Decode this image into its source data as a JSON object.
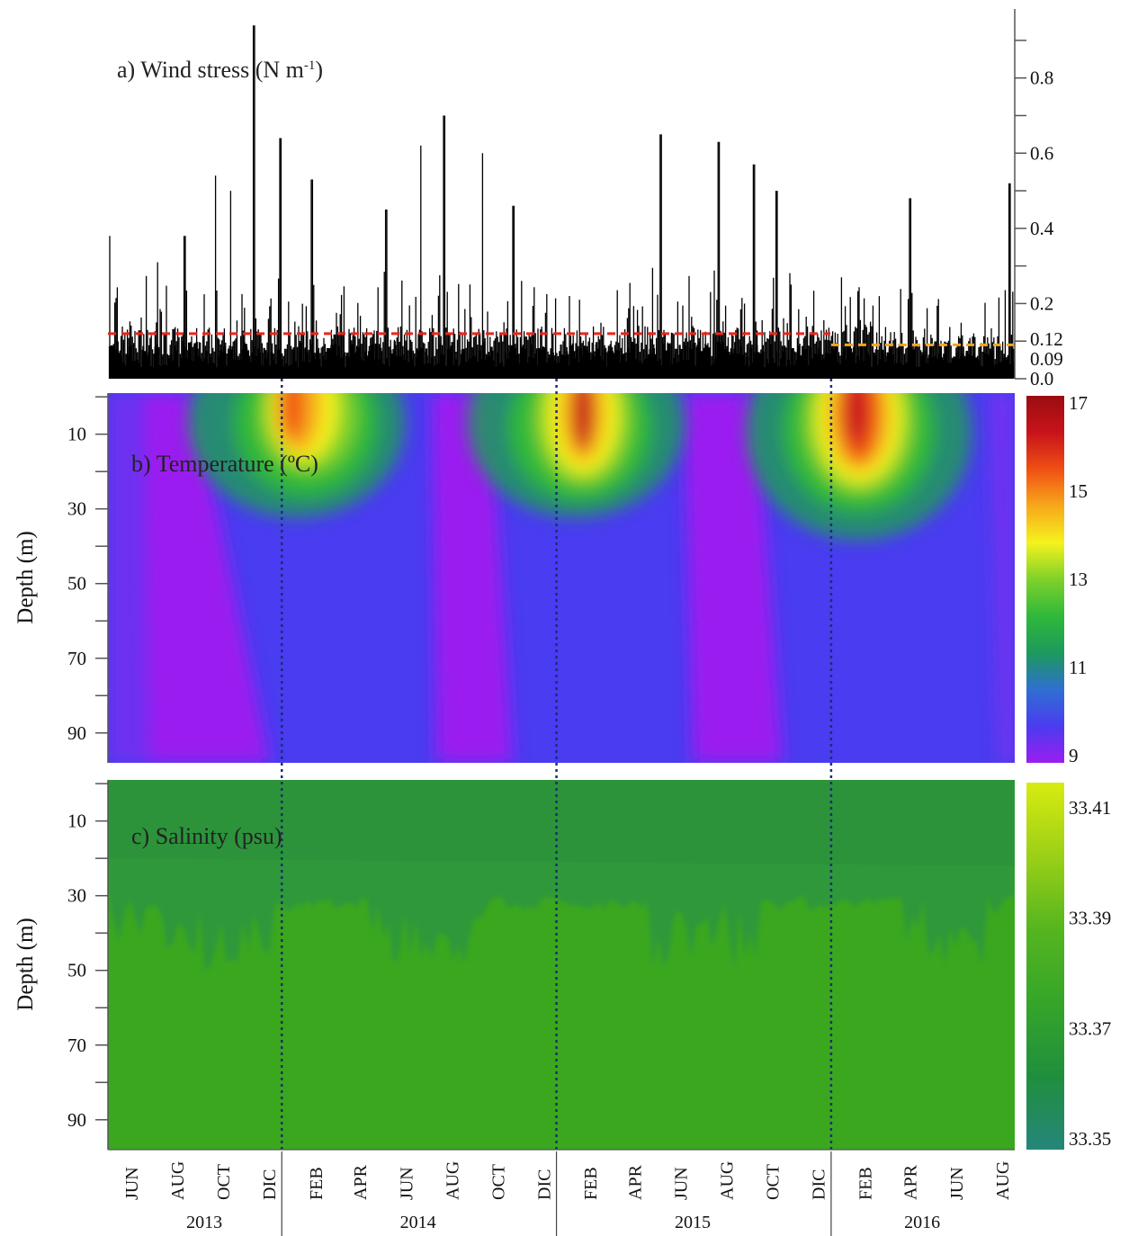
{
  "chart_data": [
    {
      "type": "line",
      "panel": "a",
      "label_prefix": "a) Wind stress (N m",
      "label_sup": "-1",
      "label_suffix": ")",
      "y_ticks": [
        "0.0",
        "0.2",
        "0.4",
        "0.6",
        "0.8"
      ],
      "ylim": [
        0,
        0.95
      ],
      "x_range": [
        "2013-05-15",
        "2016-09-01"
      ],
      "series": [
        {
          "values_description_peaks": [
            {
              "x": "2013-05-16",
              "y": 0.38
            },
            {
              "x": "2013-07-20",
              "y": 0.31
            },
            {
              "x": "2013-08-25",
              "y": 0.38
            },
            {
              "x": "2013-10-05",
              "y": 0.54
            },
            {
              "x": "2013-10-25",
              "y": 0.5
            },
            {
              "x": "2013-11-25",
              "y": 0.94
            },
            {
              "x": "2013-12-30",
              "y": 0.64
            },
            {
              "x": "2014-02-10",
              "y": 0.53
            },
            {
              "x": "2014-05-20",
              "y": 0.45
            },
            {
              "x": "2014-07-05",
              "y": 0.62
            },
            {
              "x": "2014-08-05",
              "y": 0.7
            },
            {
              "x": "2014-09-25",
              "y": 0.6
            },
            {
              "x": "2014-11-05",
              "y": 0.46
            },
            {
              "x": "2015-05-20",
              "y": 0.65
            },
            {
              "x": "2015-08-05",
              "y": 0.63
            },
            {
              "x": "2015-09-20",
              "y": 0.57
            },
            {
              "x": "2015-10-20",
              "y": 0.5
            },
            {
              "x": "2016-04-15",
              "y": 0.48
            },
            {
              "x": "2016-08-25",
              "y": 0.52
            }
          ]
        }
      ],
      "threshold_lines": [
        {
          "value": 0.12,
          "label": "0.12",
          "color": "#e8261c",
          "from": "2013-05-15",
          "to": "2015-12-31"
        },
        {
          "value": 0.09,
          "label": "0.09",
          "color": "#f5a623",
          "from": "2016-01-01",
          "to": "2016-09-01"
        }
      ]
    },
    {
      "type": "heatmap",
      "panel": "b",
      "label": "b) Temperature (ºC)",
      "ylabel": "Depth (m)",
      "y_ticks": [
        "10",
        "30",
        "50",
        "70",
        "90"
      ],
      "colorbar_ticks": [
        "17",
        "15",
        "13",
        "11",
        "9"
      ],
      "colorbar_range": [
        9,
        17
      ],
      "depth_range": [
        1,
        100
      ],
      "warm_events": [
        {
          "season": "2013-2014",
          "peak_x": "2014-01-20",
          "peak_temperature": 17,
          "mixed_layer_depth_m": 30
        },
        {
          "season": "2014-2015",
          "peak_x": "2015-02-15",
          "peak_temperature": 17,
          "mixed_layer_depth_m": 28
        },
        {
          "season": "2015-2016",
          "peak_x": "2016-02-10",
          "peak_temperature": 17,
          "mixed_layer_depth_m": 40
        }
      ]
    },
    {
      "type": "heatmap",
      "panel": "c",
      "label": "c) Salinity (psu)",
      "ylabel": "Depth (m)",
      "y_ticks": [
        "10",
        "30",
        "50",
        "70",
        "90"
      ],
      "colorbar_ticks": [
        "33.41",
        "33.39",
        "33.37",
        "33.35"
      ],
      "colorbar_range": [
        33.35,
        33.41
      ],
      "depth_range": [
        1,
        100
      ],
      "upper_layer_depth_m": 32
    }
  ],
  "x_axis": {
    "months": [
      "JUN",
      "AUG",
      "OCT",
      "DIC",
      "FEB",
      "APR",
      "JUN",
      "AUG",
      "OCT",
      "DIC",
      "FEB",
      "APR",
      "JUN",
      "AUG",
      "OCT",
      "DIC",
      "FEB",
      "APR",
      "JUN",
      "AUG"
    ],
    "years": [
      "2013",
      "2014",
      "2015",
      "2016"
    ]
  },
  "colors": {
    "temp_scale": [
      "#9b1ef0",
      "#4a3cf0",
      "#2f6fd1",
      "#1c9a5c",
      "#2fb83a",
      "#7fd12a",
      "#f5f21e",
      "#f7a81a",
      "#f04f14",
      "#c8131a",
      "#9a0d10"
    ],
    "salinity_scale": [
      "#25867a",
      "#1f8f3d",
      "#35a52a",
      "#55b51f",
      "#9bd017",
      "#d8eb10"
    ],
    "divider": "#1b2f6e",
    "wind": "#000000"
  }
}
